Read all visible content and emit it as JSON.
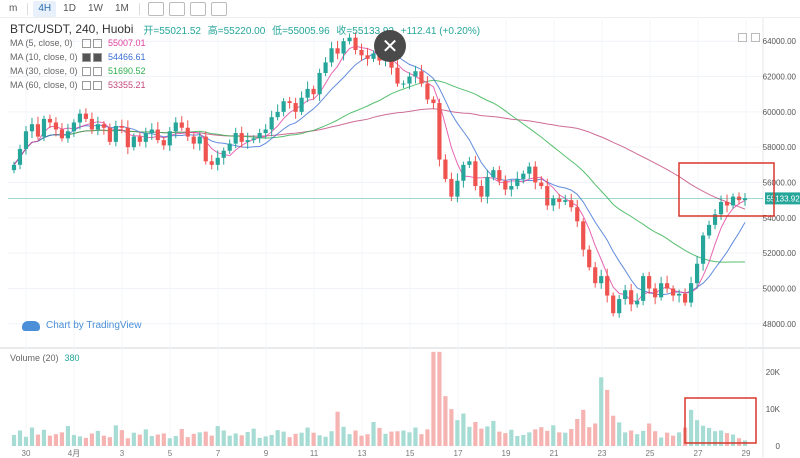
{
  "toolbar": {
    "items": [
      "m",
      "4H",
      "1D",
      "1W",
      "1M"
    ],
    "active": "4H"
  },
  "header": {
    "symbol": "BTC/USDT, 240, Huobi",
    "open_label": "开=55021.52",
    "high_label": "高=55220.00",
    "low_label": "低=55005.96",
    "close_label": "收=55133.92",
    "change_label": "+112.41 (+0.20%)"
  },
  "ma_legend": [
    {
      "label": "MA (5, close, 0)",
      "value": "55007.01",
      "color": "#e040a0"
    },
    {
      "label": "MA (10, close, 0)",
      "value": "54466.61",
      "color": "#3b6fd4"
    },
    {
      "label": "MA (30, close, 0)",
      "value": "51690.52",
      "color": "#2db04b"
    },
    {
      "label": "MA (60, close, 0)",
      "value": "53355.21",
      "color": "#c2477a"
    }
  ],
  "watermark": "Chart by TradingView",
  "volume_legend": {
    "label": "Volume (20)",
    "value": "380"
  },
  "price_tag": "55133.92",
  "colors": {
    "up": "#26a69a",
    "down": "#ef5350",
    "highlight": "#d9362b",
    "tag": "#26a69a"
  },
  "chart_data": {
    "type": "candlestick",
    "y_ticks": [
      "64000.00",
      "62000.00",
      "60000.00",
      "58000.00",
      "56000.00",
      "54000.00",
      "52000.00",
      "50000.00",
      "48000.00"
    ],
    "y_range": [
      46800,
      65200
    ],
    "x_ticks": [
      "30",
      "4月",
      "3",
      "5",
      "7",
      "9",
      "11",
      "13",
      "15",
      "17",
      "19",
      "21",
      "23",
      "25",
      "27",
      "29"
    ],
    "volume_ticks": [
      "20K",
      "10K",
      "0"
    ],
    "volume_range": [
      0,
      26000
    ],
    "candles_close": [
      57000,
      57900,
      58900,
      59300,
      58600,
      59600,
      59400,
      59000,
      58500,
      58900,
      59400,
      59900,
      59600,
      59000,
      59300,
      59100,
      58300,
      59200,
      59100,
      58000,
      58600,
      58300,
      58800,
      59000,
      58400,
      58100,
      58900,
      59400,
      59100,
      58600,
      58200,
      58600,
      57200,
      57000,
      57400,
      57800,
      58200,
      58800,
      58300,
      58400,
      58500,
      58800,
      59000,
      59700,
      60000,
      60600,
      60500,
      60000,
      60800,
      61300,
      61000,
      62200,
      62800,
      63600,
      63300,
      64000,
      64200,
      63500,
      63200,
      63000,
      63300,
      62900,
      63200,
      62500,
      61600,
      61600,
      62000,
      62300,
      61600,
      60700,
      60500,
      57300,
      56200,
      55200,
      56100,
      57000,
      57200,
      55800,
      55200,
      56300,
      56700,
      56100,
      55600,
      55800,
      56200,
      56500,
      56900,
      56000,
      55800,
      54700,
      55100,
      54900,
      55000,
      54600,
      53800,
      52200,
      51200,
      50300,
      50700,
      49600,
      48600,
      49400,
      49900,
      49100,
      49300,
      50700,
      50000,
      49500,
      50300,
      50000,
      49600,
      49700,
      49200,
      50300,
      51400,
      53000,
      53600,
      54200,
      54900,
      54700,
      55200,
      55000,
      55100
    ],
    "volumes": [
      3000,
      4200,
      2500,
      5000,
      3100,
      4400,
      2800,
      3200,
      3700,
      5400,
      3000,
      2600,
      2200,
      3400,
      4100,
      2800,
      2400,
      5600,
      4300,
      2100,
      3600,
      3100,
      4500,
      2700,
      3100,
      3400,
      2100,
      2700,
      4600,
      2400,
      3300,
      3700,
      3900,
      2800,
      5400,
      4200,
      2800,
      3400,
      2900,
      3800,
      4700,
      2200,
      2600,
      3000,
      4300,
      3900,
      2400,
      3300,
      3600,
      5000,
      3600,
      2900,
      2500,
      4000,
      9300,
      5200,
      3200,
      4200,
      2800,
      3200,
      6500,
      4900,
      3300,
      3900,
      4000,
      4200,
      3700,
      5000,
      3200,
      4500,
      25500,
      25500,
      13500,
      10000,
      7000,
      8800,
      5200,
      6500,
      4700,
      5300,
      6800,
      3900,
      3500,
      4400,
      2700,
      3000,
      3700,
      4500,
      5100,
      4100,
      5600,
      3700,
      3600,
      4600,
      7300,
      9800,
      5100,
      6100,
      18600,
      15200,
      8200,
      6400,
      3700,
      4200,
      3200,
      4100,
      6100,
      4000,
      2300,
      3600,
      2800,
      3700,
      5000,
      9800,
      7000,
      5500,
      4900,
      4000,
      4200,
      3500,
      3100,
      2100,
      1500
    ]
  }
}
